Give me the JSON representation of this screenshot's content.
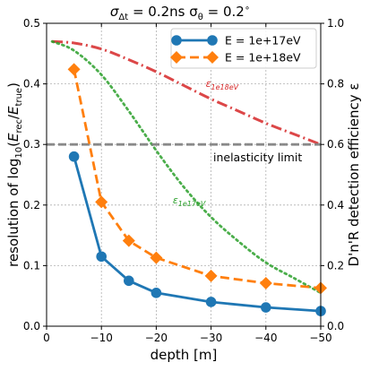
{
  "chart_data": {
    "type": "line",
    "title": {
      "main": "σ",
      "sub1": "Δt",
      "mid": " = 0.2ns  σ",
      "sub2": "θ",
      "tail": " = 0.2",
      "deg": "∘"
    },
    "xlabel": "depth [m]",
    "ylabel": "resolution of log₁₀(E_rec/E_true)",
    "ylabel_parts": {
      "pre": "resolution of log",
      "sub": "10",
      "paren_open": "(",
      "e1": "E",
      "e1sub": "rec",
      "slash": "/",
      "e2": "E",
      "e2sub": "true",
      "paren_close": ")"
    },
    "y2label": "D'n'R detection efficiency ε",
    "xlim": [
      0,
      -50
    ],
    "ylim": [
      0,
      0.5
    ],
    "y2lim": [
      0,
      1.0
    ],
    "xticks": [
      0,
      -10,
      -20,
      -30,
      -40,
      -50
    ],
    "xtick_labels": [
      "0",
      "−10",
      "−20",
      "−30",
      "−40",
      "−50"
    ],
    "yticks": [
      0,
      0.1,
      0.2,
      0.3,
      0.4,
      0.5
    ],
    "ytick_labels": [
      "0.0",
      "0.1",
      "0.2",
      "0.3",
      "0.4",
      "0.5"
    ],
    "y2ticks": [
      0,
      0.2,
      0.4,
      0.6,
      0.8,
      1.0
    ],
    "y2tick_labels": [
      "0.0",
      "0.2",
      "0.4",
      "0.6",
      "0.8",
      "1.0"
    ],
    "grid": true,
    "legend_position": "top-right",
    "series": [
      {
        "name": "E = 1e+17eV",
        "color": "#1f77b4",
        "style": "solid",
        "marker": "circle",
        "x": [
          -5,
          -10,
          -15,
          -20,
          -30,
          -40,
          -50
        ],
        "y": [
          0.28,
          0.115,
          0.075,
          0.055,
          0.04,
          0.031,
          0.025
        ]
      },
      {
        "name": "E = 1e+18eV",
        "color": "#ff7f0e",
        "style": "dashed",
        "marker": "diamond",
        "x": [
          -5,
          -10,
          -15,
          -20,
          -30,
          -40,
          -50
        ],
        "y": [
          0.424,
          0.205,
          0.141,
          0.113,
          0.083,
          0.071,
          0.063
        ]
      }
    ],
    "efficiency_curves": [
      {
        "label_base": "ε",
        "label_sub": "1e18eV",
        "color": "#d62728",
        "style": "dashdot",
        "axis": "right",
        "x": [
          -1,
          -5,
          -10,
          -15,
          -20,
          -25,
          -30,
          -35,
          -40,
          -45,
          -50
        ],
        "y": [
          0.94,
          0.935,
          0.915,
          0.88,
          0.84,
          0.795,
          0.75,
          0.71,
          0.67,
          0.635,
          0.6
        ]
      },
      {
        "label_base": "ε",
        "label_sub": "1e17eV",
        "color": "#2ca02c",
        "style": "dotted",
        "axis": "right",
        "x": [
          -1,
          -5,
          -10,
          -15,
          -20,
          -25,
          -30,
          -35,
          -40,
          -45,
          -50
        ],
        "y": [
          0.94,
          0.91,
          0.83,
          0.71,
          0.58,
          0.46,
          0.36,
          0.28,
          0.21,
          0.16,
          0.11
        ]
      }
    ],
    "reference_line": {
      "y": 0.3,
      "label": "inelasticity limit",
      "color": "#7f7f7f"
    }
  }
}
